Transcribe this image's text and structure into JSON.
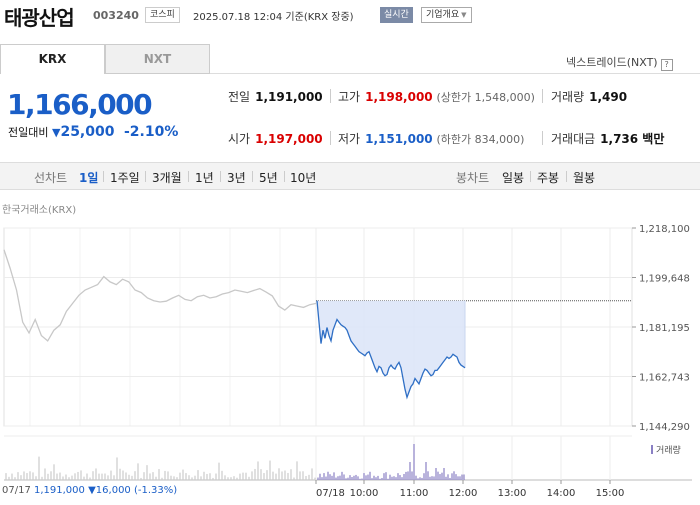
{
  "header": {
    "stock_name": "태광산업",
    "stock_code": "003240",
    "market": "코스피",
    "datetime": "2025.07.18 12:04 기준(KRX 장중)",
    "realtime_badge": "실시간",
    "corp_info_button": "기업개요"
  },
  "tabs": [
    {
      "label": "KRX",
      "active": true
    },
    {
      "label": "NXT",
      "active": false
    }
  ],
  "nexttrade_label": "넥스트레이드(NXT)",
  "price": {
    "current": "1,166,000",
    "change_label": "전일대비",
    "change_amount": "25,000",
    "change_rate": "-2.10%",
    "direction": "down"
  },
  "quotes": {
    "prev_close": {
      "label": "전일",
      "value": "1,191,000"
    },
    "high": {
      "label": "고가",
      "value": "1,198,000",
      "sub": "(상한가 1,548,000)"
    },
    "volume": {
      "label": "거래량",
      "value": "1,490"
    },
    "open": {
      "label": "시가",
      "value": "1,197,000"
    },
    "low": {
      "label": "저가",
      "value": "1,151,000",
      "sub": "(하한가 834,000)"
    },
    "amount": {
      "label": "거래대금",
      "value": "1,736 백만"
    }
  },
  "period_bar": {
    "line_label": "선차트",
    "line_periods": [
      "1일",
      "1주일",
      "3개월",
      "1년",
      "3년",
      "5년",
      "10년"
    ],
    "active_period": "1일",
    "candle_label": "봉차트",
    "candle_periods": [
      "일봉",
      "주봉",
      "월봉"
    ]
  },
  "exchange_label": "한국거래소(KRX)",
  "volume_legend": "거래량",
  "bottom": {
    "prev_date": "07/17",
    "prev_close": "1,191,000",
    "prev_change": "16,000",
    "prev_rate": "(-1.33%)",
    "today_date": "07/18"
  },
  "colors": {
    "down": "#1a5ec7",
    "up": "#d90000",
    "today_line": "#2f6fc5",
    "today_fill": "#dde6f8",
    "prev_line": "#c8c8c8",
    "volume_bar": "#8a80c4"
  },
  "chart_data": {
    "type": "line",
    "y_ticks": [
      1218100,
      1199648,
      1181195,
      1162743,
      1144290
    ],
    "ylim": [
      1144290,
      1218100
    ],
    "x_ticks": [
      "07/18",
      "10:00",
      "11:00",
      "12:00",
      "13:00",
      "14:00",
      "15:00"
    ],
    "reference_line": 1191000,
    "grid": true,
    "series": [
      {
        "role": "previous-day",
        "x": [
          0,
          2,
          4,
          6,
          8,
          10,
          12,
          14,
          16,
          18,
          20,
          22,
          24,
          26,
          28,
          30,
          32,
          34,
          36,
          38,
          40,
          42,
          44,
          46,
          48,
          50,
          52,
          54,
          56,
          58,
          60,
          62,
          64,
          66,
          68,
          70,
          72,
          74,
          76,
          78,
          80,
          82,
          84,
          86,
          88,
          90,
          92,
          94,
          96,
          98,
          100
        ],
        "y": [
          1210000,
          1203000,
          1195000,
          1183000,
          1179000,
          1184000,
          1178000,
          1176000,
          1180000,
          1182000,
          1187000,
          1190000,
          1193000,
          1195000,
          1196000,
          1197000,
          1200000,
          1198000,
          1197000,
          1199000,
          1198000,
          1195000,
          1194000,
          1192000,
          1191000,
          1190500,
          1190800,
          1192000,
          1193000,
          1191500,
          1191000,
          1192500,
          1193000,
          1192000,
          1192500,
          1193500,
          1194000,
          1195000,
          1194500,
          1194000,
          1194800,
          1195500,
          1194200,
          1192800,
          1189000,
          1187500,
          1189500,
          1189000,
          1188500,
          1189500,
          1190000
        ]
      },
      {
        "role": "today",
        "x": [
          0,
          2,
          4,
          6,
          8,
          10,
          12,
          14,
          16,
          18,
          20,
          22,
          24,
          26,
          28,
          30,
          32,
          34,
          36,
          38,
          40,
          42,
          44,
          46,
          48,
          50,
          52,
          54,
          56,
          58,
          60,
          62,
          64,
          66,
          68,
          70,
          72,
          74,
          76,
          78,
          80,
          82,
          84,
          86,
          88,
          90,
          92,
          94,
          96,
          98,
          100,
          102,
          104,
          106,
          108,
          110,
          112,
          114,
          116,
          118,
          120,
          122,
          124,
          126,
          128,
          130,
          132,
          134,
          136,
          138,
          140,
          142,
          144,
          146,
          148
        ],
        "y": [
          1191000,
          1183000,
          1175000,
          1180000,
          1177000,
          1181000,
          1178000,
          1176000,
          1180000,
          1182000,
          1184000,
          1183000,
          1182000,
          1181500,
          1181000,
          1180000,
          1178000,
          1176000,
          1175000,
          1174000,
          1173000,
          1172000,
          1171500,
          1171000,
          1170500,
          1171500,
          1172000,
          1170000,
          1168000,
          1166000,
          1164500,
          1166500,
          1166000,
          1164000,
          1163000,
          1163500,
          1166000,
          1167000,
          1166000,
          1165500,
          1167000,
          1168000,
          1166000,
          1162000,
          1158000,
          1155000,
          1157000,
          1159000,
          1160000,
          1162000,
          1161000,
          1160000,
          1162000,
          1164000,
          1165500,
          1165000,
          1164000,
          1163000,
          1163500,
          1165000,
          1165000,
          1166000,
          1167000,
          1168000,
          1169000,
          1170000,
          1169500,
          1170000,
          1171000,
          1170500,
          1170000,
          1168000,
          1167000,
          1166500,
          1166000
        ]
      }
    ]
  }
}
